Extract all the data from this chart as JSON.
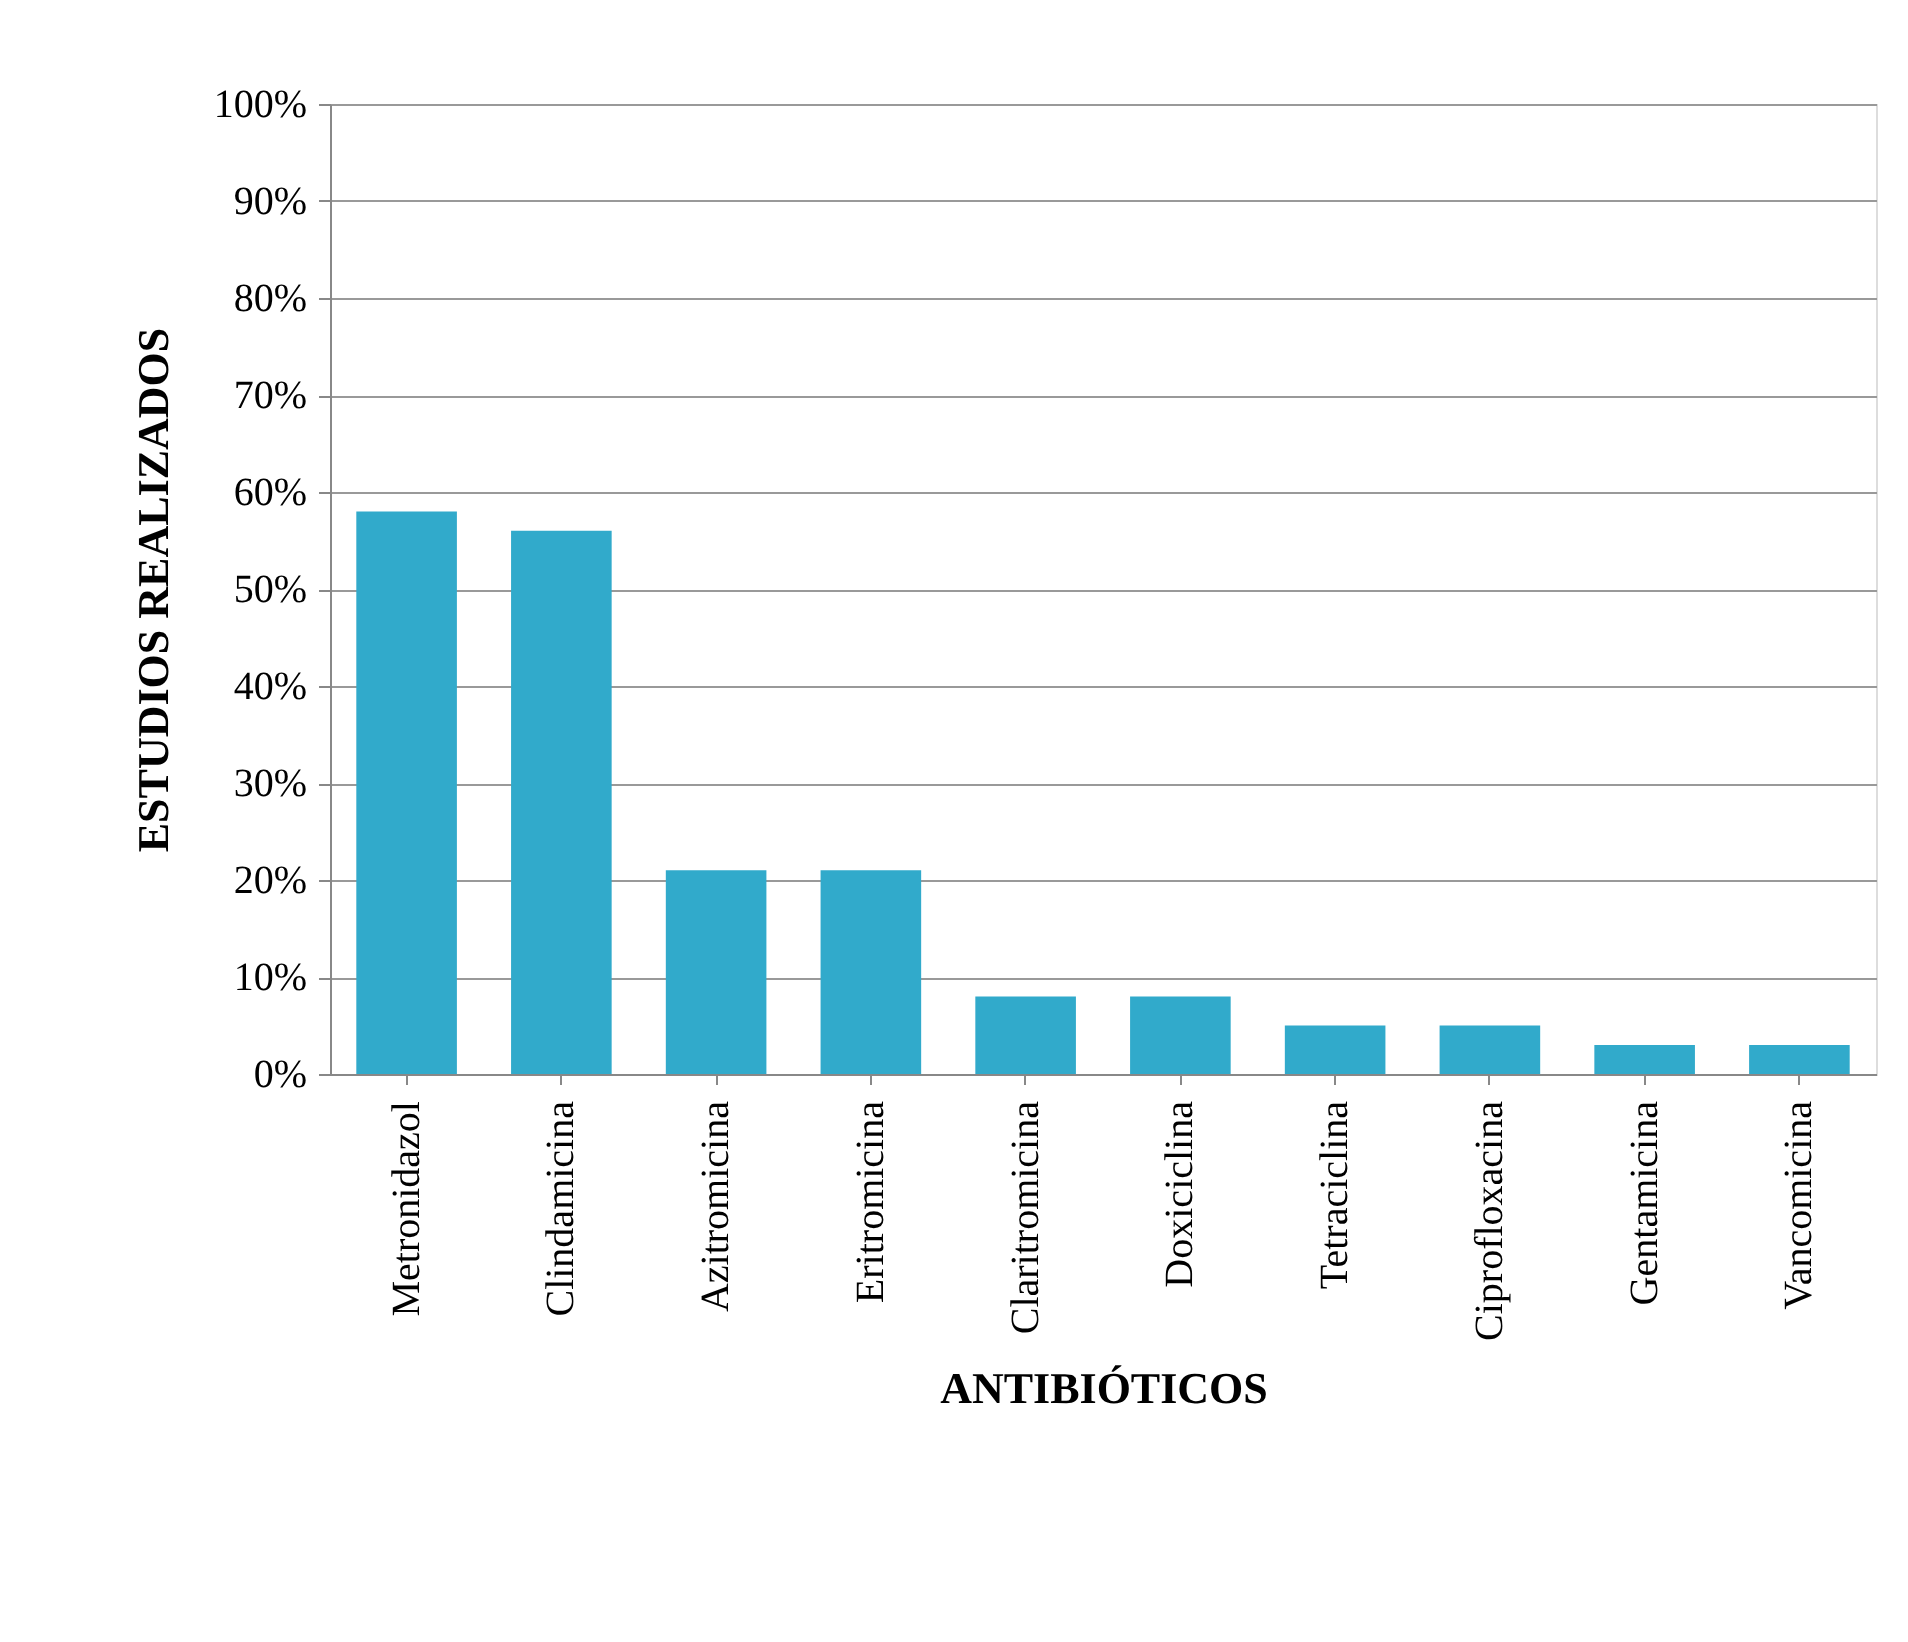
{
  "chart_data": {
    "type": "bar",
    "xlabel": "ANTIBIÓTICOS",
    "ylabel": "ESTUDIOS REALIZADOS",
    "categories": [
      "Metronidazol",
      "Clindamicina",
      "Azitromicina",
      "Eritromicina",
      "Claritromicina",
      "Doxiciclina",
      "Tetraciclina",
      "Ciprofloxacina",
      "Gentamicina",
      "Vancomicina"
    ],
    "values": [
      58,
      56,
      21,
      21,
      8,
      8,
      5,
      5,
      3,
      3
    ],
    "color": "#31aacb",
    "ylim": [
      0,
      100
    ],
    "yticks": [
      {
        "value": 0,
        "label": "0%"
      },
      {
        "value": 10,
        "label": "10%"
      },
      {
        "value": 20,
        "label": "20%"
      },
      {
        "value": 30,
        "label": "30%"
      },
      {
        "value": 40,
        "label": "40%"
      },
      {
        "value": 50,
        "label": "50%"
      },
      {
        "value": 60,
        "label": "60%"
      },
      {
        "value": 70,
        "label": "70%"
      },
      {
        "value": 80,
        "label": "80%"
      },
      {
        "value": 90,
        "label": "90%"
      },
      {
        "value": 100,
        "label": "100%"
      }
    ],
    "grid": "y"
  }
}
